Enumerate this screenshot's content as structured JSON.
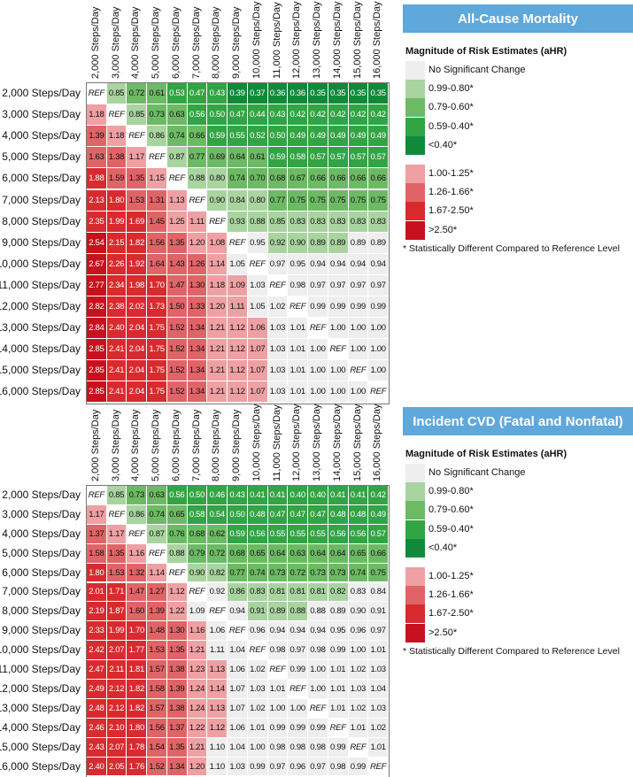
{
  "colors": {
    "none": "#eeeeee",
    "g1": "#a9d4a0",
    "g2": "#6dba64",
    "g3": "#33a444",
    "g4": "#108a3a",
    "r1": "#eea0a3",
    "r2": "#e06467",
    "r3": "#d92a2f",
    "r4": "#c8111e"
  },
  "chart_data": [
    {
      "type": "heatmap",
      "title": "All-Cause Mortality",
      "legend_title": "Magnitude of Risk Estimates (aHR)",
      "legend": [
        "No Significant Change",
        "0.99-0.80*",
        "0.79-0.60*",
        "0.59-0.40*",
        "<0.40*",
        "1.00-1.25*",
        "1.26-1.66*",
        "1.67-2.50*",
        ">2.50*"
      ],
      "footnote": "* Statistically Different Compared to Reference Level",
      "columns": [
        "2,000 Steps/Day",
        "3,000 Steps/Day",
        "4,000 Steps/Day",
        "5,000 Steps/Day",
        "6,000 Steps/Day",
        "7,000 Steps/Day",
        "8,000 Steps/Day",
        "9,000 Steps/Day",
        "10,000 Steps/Day",
        "11,000 Steps/Day",
        "12,000 Steps/Day",
        "13,000 Steps/Day",
        "14,000 Steps/Day",
        "15,000 Steps/Day",
        "16,000 Steps/Day"
      ],
      "rows": [
        "2,000 Steps/Day",
        "3,000 Steps/Day",
        "4,000 Steps/Day",
        "5,000 Steps/Day",
        "6,000 Steps/Day",
        "7,000 Steps/Day",
        "8,000 Steps/Day",
        "9,000 Steps/Day",
        "10,000 Steps/Day",
        "11,000 Steps/Day",
        "12,000 Steps/Day",
        "13,000 Steps/Day",
        "14,000 Steps/Day",
        "15,000 Steps/Day",
        "16,000 Steps/Day"
      ],
      "values": [
        [
          "REF",
          "0.85",
          "0.72",
          "0.61",
          "0.53",
          "0.47",
          "0.43",
          "0.39",
          "0.37",
          "0.36",
          "0.36",
          "0.35",
          "0.35",
          "0.35",
          "0.35"
        ],
        [
          "1.18",
          "REF",
          "0.85",
          "0.73",
          "0.63",
          "0.56",
          "0.50",
          "0.47",
          "0.44",
          "0.43",
          "0.42",
          "0.42",
          "0.42",
          "0.42",
          "0.42"
        ],
        [
          "1.39",
          "1.18",
          "REF",
          "0.86",
          "0.74",
          "0.66",
          "0.59",
          "0.55",
          "0.52",
          "0.50",
          "0.49",
          "0.49",
          "0.49",
          "0.49",
          "0.49"
        ],
        [
          "1.63",
          "1.38",
          "1.17",
          "REF",
          "0.87",
          "0.77",
          "0.69",
          "0.64",
          "0.61",
          "0.59",
          "0.58",
          "0.57",
          "0.57",
          "0.57",
          "0.57"
        ],
        [
          "1.88",
          "1.59",
          "1.35",
          "1.15",
          "REF",
          "0.88",
          "0.80",
          "0.74",
          "0.70",
          "0.68",
          "0.67",
          "0.66",
          "0.66",
          "0.66",
          "0.66"
        ],
        [
          "2.13",
          "1.80",
          "1.53",
          "1.31",
          "1.13",
          "REF",
          "0.90",
          "0.84",
          "0.80",
          "0.77",
          "0.75",
          "0.75",
          "0.75",
          "0.75",
          "0.75"
        ],
        [
          "2.35",
          "1.99",
          "1.69",
          "1.45",
          "1.25",
          "1.11",
          "REF",
          "0.93",
          "0.88",
          "0.85",
          "0.83",
          "0.83",
          "0.83",
          "0.83",
          "0.83"
        ],
        [
          "2.54",
          "2.15",
          "1.82",
          "1.56",
          "1.35",
          "1.20",
          "1.08",
          "REF",
          "0.95",
          "0.92",
          "0.90",
          "0.89",
          "0.89",
          "0.89",
          "0.89"
        ],
        [
          "2.67",
          "2.26",
          "1.92",
          "1.64",
          "1.43",
          "1.26",
          "1.14",
          "1.05",
          "REF",
          "0.97",
          "0.95",
          "0.94",
          "0.94",
          "0.94",
          "0.94"
        ],
        [
          "2.77",
          "2.34",
          "1.98",
          "1.70",
          "1.47",
          "1.30",
          "1.18",
          "1.09",
          "1.03",
          "REF",
          "0.98",
          "0.97",
          "0.97",
          "0.97",
          "0.97"
        ],
        [
          "2.82",
          "2.38",
          "2.02",
          "1.73",
          "1.50",
          "1.33",
          "1.20",
          "1.11",
          "1.05",
          "1.02",
          "REF",
          "0.99",
          "0.99",
          "0.99",
          "0.99"
        ],
        [
          "2.84",
          "2.40",
          "2.04",
          "1.75",
          "1.52",
          "1.34",
          "1.21",
          "1.12",
          "1.06",
          "1.03",
          "1.01",
          "REF",
          "1.00",
          "1.00",
          "1.00"
        ],
        [
          "2.85",
          "2.41",
          "2.04",
          "1.75",
          "1.52",
          "1.34",
          "1.21",
          "1.12",
          "1.07",
          "1.03",
          "1.01",
          "1.00",
          "REF",
          "1.00",
          "1.00"
        ],
        [
          "2.85",
          "2.41",
          "2.04",
          "1.75",
          "1.52",
          "1.34",
          "1.21",
          "1.12",
          "1.07",
          "1.03",
          "1.01",
          "1.00",
          "1.00",
          "REF",
          "1.00"
        ],
        [
          "2.85",
          "2.41",
          "2.04",
          "1.75",
          "1.52",
          "1.34",
          "1.21",
          "1.12",
          "1.07",
          "1.03",
          "1.01",
          "1.00",
          "1.00",
          "1.00",
          "REF"
        ]
      ],
      "significant": [
        "111111111111111",
        "111111111111111",
        "111111111111111",
        "111111111111111",
        "111111111111111",
        "111111111111111",
        "111111111111111",
        "111111110111100",
        "111111100000000",
        "111111110000000",
        "111111110000000",
        "111111111000000",
        "111111111000000",
        "111111111000000",
        "111111111000000"
      ]
    },
    {
      "type": "heatmap",
      "title": "Incident CVD (Fatal and Nonfatal)",
      "legend_title": "Magnitude of Risk Estimates (aHR)",
      "legend": [
        "No Significant Change",
        "0.99-0.80*",
        "0.79-0.60*",
        "0.59-0.40*",
        "<0.40*",
        "1.00-1.25*",
        "1.26-1.66*",
        "1.67-2.50*",
        ">2.50*"
      ],
      "footnote": "* Statistically Different Compared to Reference Level",
      "columns": [
        "2,000 Steps/Day",
        "3,000 Steps/Day",
        "4,000 Steps/Day",
        "5,000 Steps/Day",
        "6,000 Steps/Day",
        "7,000 Steps/Day",
        "8,000 Steps/Day",
        "9,000 Steps/Day",
        "10,000 Steps/Day",
        "11,000 Steps/Day",
        "12,000 Steps/Day",
        "13,000 Steps/Day",
        "14,000 Steps/Day",
        "15,000 Steps/Day",
        "16,000 Steps/Day"
      ],
      "rows": [
        "2,000 Steps/Day",
        "3,000 Steps/Day",
        "4,000 Steps/Day",
        "5,000 Steps/Day",
        "6,000 Steps/Day",
        "7,000 Steps/Day",
        "8,000 Steps/Day",
        "9,000 Steps/Day",
        "10,000 Steps/Day",
        "11,000 Steps/Day",
        "12,000 Steps/Day",
        "13,000 Steps/Day",
        "14,000 Steps/Day",
        "15,000 Steps/Day",
        "16,000 Steps/Day"
      ],
      "values": [
        [
          "REF",
          "0.85",
          "0.73",
          "0.63",
          "0.56",
          "0.50",
          "0.46",
          "0.43",
          "0.41",
          "0.41",
          "0.40",
          "0.40",
          "0.41",
          "0.41",
          "0.42"
        ],
        [
          "1.17",
          "REF",
          "0.86",
          "0.74",
          "0.65",
          "0.58",
          "0.54",
          "0.50",
          "0.48",
          "0.47",
          "0.47",
          "0.47",
          "0.48",
          "0.48",
          "0.49"
        ],
        [
          "1.37",
          "1.17",
          "REF",
          "0.87",
          "0.76",
          "0.68",
          "0.62",
          "0.59",
          "0.56",
          "0.55",
          "0.55",
          "0.55",
          "0.56",
          "0.56",
          "0.57"
        ],
        [
          "1.58",
          "1.35",
          "1.16",
          "REF",
          "0.88",
          "0.79",
          "0.72",
          "0.68",
          "0.65",
          "0.64",
          "0.63",
          "0.64",
          "0.64",
          "0.65",
          "0.66"
        ],
        [
          "1.80",
          "1.53",
          "1.32",
          "1.14",
          "REF",
          "0.90",
          "0.82",
          "0.77",
          "0.74",
          "0.73",
          "0.72",
          "0.73",
          "0.73",
          "0.74",
          "0.75"
        ],
        [
          "2.01",
          "1.71",
          "1.47",
          "1.27",
          "1.12",
          "REF",
          "0.92",
          "0.86",
          "0.83",
          "0.81",
          "0.81",
          "0.81",
          "0.82",
          "0.83",
          "0.84"
        ],
        [
          "2.19",
          "1.87",
          "1.60",
          "1.39",
          "1.22",
          "1.09",
          "REF",
          "0.94",
          "0.91",
          "0.89",
          "0.88",
          "0.88",
          "0.89",
          "0.90",
          "0.91"
        ],
        [
          "2.33",
          "1.99",
          "1.70",
          "1.48",
          "1.30",
          "1.16",
          "1.06",
          "REF",
          "0.96",
          "0.94",
          "0.94",
          "0.94",
          "0.95",
          "0.96",
          "0.97"
        ],
        [
          "2.42",
          "2.07",
          "1.77",
          "1.53",
          "1.35",
          "1.21",
          "1.11",
          "1.04",
          "REF",
          "0.98",
          "0.97",
          "0.98",
          "0.99",
          "1.00",
          "1.01"
        ],
        [
          "2.47",
          "2.11",
          "1.81",
          "1.57",
          "1.38",
          "1.23",
          "1.13",
          "1.06",
          "1.02",
          "REF",
          "0.99",
          "1.00",
          "1.01",
          "1.02",
          "1.03"
        ],
        [
          "2.49",
          "2.12",
          "1.82",
          "1.58",
          "1.39",
          "1.24",
          "1.14",
          "1.07",
          "1.03",
          "1.01",
          "REF",
          "1.00",
          "1.01",
          "1.03",
          "1.04"
        ],
        [
          "2.48",
          "2.12",
          "1.82",
          "1.57",
          "1.38",
          "1.24",
          "1.13",
          "1.07",
          "1.02",
          "1.00",
          "1.00",
          "REF",
          "1.01",
          "1.02",
          "1.03"
        ],
        [
          "2.46",
          "2.10",
          "1.80",
          "1.56",
          "1.37",
          "1.22",
          "1.12",
          "1.06",
          "1.01",
          "0.99",
          "0.99",
          "0.99",
          "REF",
          "1.01",
          "1.02"
        ],
        [
          "2.43",
          "2.07",
          "1.78",
          "1.54",
          "1.35",
          "1.21",
          "1.10",
          "1.04",
          "1.00",
          "0.98",
          "0.98",
          "0.98",
          "0.99",
          "REF",
          "1.01"
        ],
        [
          "2.40",
          "2.05",
          "1.76",
          "1.52",
          "1.34",
          "1.20",
          "1.10",
          "1.03",
          "0.99",
          "0.97",
          "0.96",
          "0.97",
          "0.98",
          "0.99",
          "REF"
        ]
      ],
      "significant": [
        "111111111111111",
        "111111111111111",
        "111111111111111",
        "111111111111111",
        "111111111111111",
        "111110011111100",
        "111110001110000",
        "111111000000000",
        "111111000000000",
        "111111100000000",
        "111111100000000",
        "111111100000000",
        "111111100000000",
        "111111000000000",
        "111111000000000"
      ]
    }
  ]
}
